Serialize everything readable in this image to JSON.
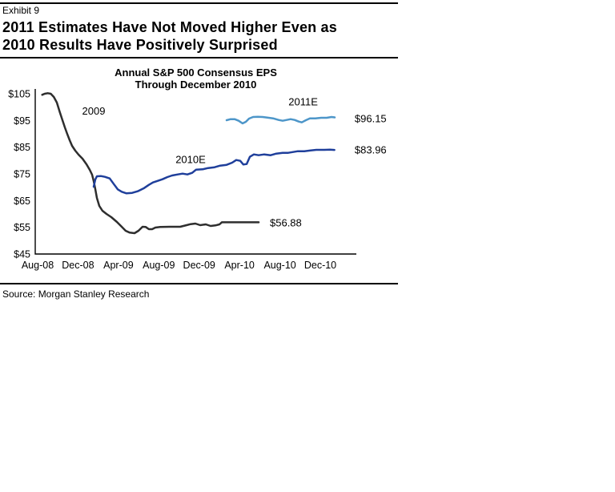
{
  "header": {
    "exhibit": "Exhibit 9",
    "title_line1": "2011 Estimates Have Not Moved Higher Even as",
    "title_line2": "2010 Results Have Positively Surprised"
  },
  "source": "Source: Morgan Stanley Research",
  "chart_data": {
    "type": "line",
    "title_line1": "Annual S&P 500 Consensus EPS",
    "title_line2": "Through December 2010",
    "xlabel": "",
    "ylabel": "",
    "x_unit": "months since Aug-2008",
    "xlim": [
      0,
      31.6
    ],
    "ylim": [
      45,
      105
    ],
    "grid": false,
    "legend": "inline-labels",
    "axis_color": "#000000",
    "y_tick_prefix": "$",
    "y_ticks": [
      105,
      95,
      85,
      75,
      65,
      55,
      45
    ],
    "x_ticks": [
      {
        "m": 0,
        "label": "Aug-08"
      },
      {
        "m": 4,
        "label": "Dec-08"
      },
      {
        "m": 8,
        "label": "Apr-09"
      },
      {
        "m": 12,
        "label": "Aug-09"
      },
      {
        "m": 16,
        "label": "Dec-09"
      },
      {
        "m": 20,
        "label": "Apr-10"
      },
      {
        "m": 24,
        "label": "Aug-10"
      },
      {
        "m": 28,
        "label": "Dec-10"
      }
    ],
    "series": [
      {
        "name": "2009",
        "color": "#2e2e2e",
        "end_value": 56.88,
        "end_label": "$56.88",
        "points": [
          [
            0.45,
            104.6
          ],
          [
            0.7,
            105.0
          ],
          [
            1.0,
            105.2
          ],
          [
            1.3,
            105.0
          ],
          [
            1.6,
            103.8
          ],
          [
            1.9,
            101.7
          ],
          [
            2.2,
            98.1
          ],
          [
            2.46,
            95.1
          ],
          [
            2.7,
            92.4
          ],
          [
            2.93,
            90.0
          ],
          [
            3.17,
            87.6
          ],
          [
            3.41,
            85.5
          ],
          [
            3.73,
            83.7
          ],
          [
            4.05,
            82.2
          ],
          [
            4.44,
            80.7
          ],
          [
            4.84,
            78.6
          ],
          [
            5.16,
            76.5
          ],
          [
            5.39,
            74.7
          ],
          [
            5.55,
            72.3
          ],
          [
            5.71,
            69.3
          ],
          [
            5.87,
            66.0
          ],
          [
            6.11,
            63.0
          ],
          [
            6.42,
            61.2
          ],
          [
            6.82,
            60.0
          ],
          [
            7.3,
            58.8
          ],
          [
            7.85,
            57.0
          ],
          [
            8.33,
            55.2
          ],
          [
            8.72,
            53.7
          ],
          [
            9.12,
            53.0
          ],
          [
            9.6,
            52.8
          ],
          [
            9.99,
            53.7
          ],
          [
            10.39,
            55.2
          ],
          [
            10.71,
            55.1
          ],
          [
            11.02,
            54.3
          ],
          [
            11.34,
            54.3
          ],
          [
            11.66,
            54.9
          ],
          [
            12.14,
            55.1
          ],
          [
            13.09,
            55.2
          ],
          [
            14.12,
            55.2
          ],
          [
            14.75,
            55.8
          ],
          [
            15.15,
            56.2
          ],
          [
            15.63,
            56.4
          ],
          [
            16.1,
            55.8
          ],
          [
            16.66,
            56.1
          ],
          [
            17.13,
            55.5
          ],
          [
            17.61,
            55.7
          ],
          [
            18.01,
            56.1
          ],
          [
            18.24,
            56.88
          ],
          [
            20.0,
            56.88
          ],
          [
            21.89,
            56.88
          ]
        ]
      },
      {
        "name": "2010E",
        "color": "#1f3f9b",
        "end_value": 83.96,
        "end_label": "$83.96",
        "points": [
          [
            5.55,
            70.2
          ],
          [
            5.71,
            72.9
          ],
          [
            5.87,
            74.1
          ],
          [
            6.27,
            74.2
          ],
          [
            6.66,
            73.9
          ],
          [
            7.14,
            73.3
          ],
          [
            7.54,
            71.2
          ],
          [
            7.93,
            69.2
          ],
          [
            8.33,
            68.3
          ],
          [
            8.8,
            67.7
          ],
          [
            9.36,
            67.9
          ],
          [
            9.91,
            68.5
          ],
          [
            10.55,
            69.7
          ],
          [
            11.02,
            70.9
          ],
          [
            11.42,
            71.8
          ],
          [
            11.9,
            72.4
          ],
          [
            12.37,
            73.0
          ],
          [
            12.85,
            73.8
          ],
          [
            13.32,
            74.4
          ],
          [
            13.88,
            74.8
          ],
          [
            14.36,
            75.1
          ],
          [
            14.83,
            74.8
          ],
          [
            15.31,
            75.4
          ],
          [
            15.7,
            76.6
          ],
          [
            16.34,
            76.7
          ],
          [
            16.89,
            77.2
          ],
          [
            17.53,
            77.5
          ],
          [
            18.08,
            78.1
          ],
          [
            18.72,
            78.4
          ],
          [
            19.27,
            79.2
          ],
          [
            19.67,
            80.2
          ],
          [
            20.07,
            79.9
          ],
          [
            20.38,
            78.5
          ],
          [
            20.7,
            78.7
          ],
          [
            21.02,
            81.4
          ],
          [
            21.42,
            82.3
          ],
          [
            21.89,
            82.0
          ],
          [
            22.45,
            82.3
          ],
          [
            23.08,
            82.0
          ],
          [
            23.64,
            82.6
          ],
          [
            24.27,
            82.9
          ],
          [
            24.83,
            82.9
          ],
          [
            25.3,
            83.2
          ],
          [
            25.78,
            83.5
          ],
          [
            26.41,
            83.5
          ],
          [
            27.05,
            83.8
          ],
          [
            27.6,
            84.0
          ],
          [
            28.4,
            84.0
          ],
          [
            28.95,
            84.1
          ],
          [
            29.4,
            83.96
          ]
        ]
      },
      {
        "name": "2011E",
        "color": "#4d96c9",
        "end_value": 96.15,
        "end_label": "$96.15",
        "points": [
          [
            18.72,
            95.1
          ],
          [
            19.12,
            95.5
          ],
          [
            19.51,
            95.5
          ],
          [
            19.91,
            94.9
          ],
          [
            20.3,
            93.9
          ],
          [
            20.62,
            94.5
          ],
          [
            20.94,
            95.7
          ],
          [
            21.34,
            96.3
          ],
          [
            21.81,
            96.4
          ],
          [
            22.29,
            96.3
          ],
          [
            22.76,
            96.1
          ],
          [
            23.32,
            95.8
          ],
          [
            23.87,
            95.2
          ],
          [
            24.27,
            94.9
          ],
          [
            24.67,
            95.2
          ],
          [
            25.06,
            95.5
          ],
          [
            25.46,
            95.2
          ],
          [
            25.86,
            94.6
          ],
          [
            26.17,
            94.3
          ],
          [
            26.57,
            95.1
          ],
          [
            26.97,
            95.8
          ],
          [
            27.52,
            95.8
          ],
          [
            28.08,
            96.0
          ],
          [
            28.63,
            96.0
          ],
          [
            29.11,
            96.3
          ],
          [
            29.43,
            96.15
          ]
        ]
      }
    ],
    "annotations": [
      {
        "text": "2009",
        "m": 5.55,
        "v": 98.5,
        "anchor": "middle"
      },
      {
        "text": "2010E",
        "m": 15.15,
        "v": 80.4,
        "anchor": "middle"
      },
      {
        "text": "2011E",
        "m": 26.3,
        "v": 102.0,
        "anchor": "middle"
      },
      {
        "text": "$96.15",
        "m": 31.4,
        "v": 95.7,
        "anchor": "start"
      },
      {
        "text": "$83.96",
        "m": 31.4,
        "v": 84.0,
        "anchor": "start"
      },
      {
        "text": "$56.88",
        "m": 23.0,
        "v": 56.7,
        "anchor": "start"
      }
    ]
  }
}
